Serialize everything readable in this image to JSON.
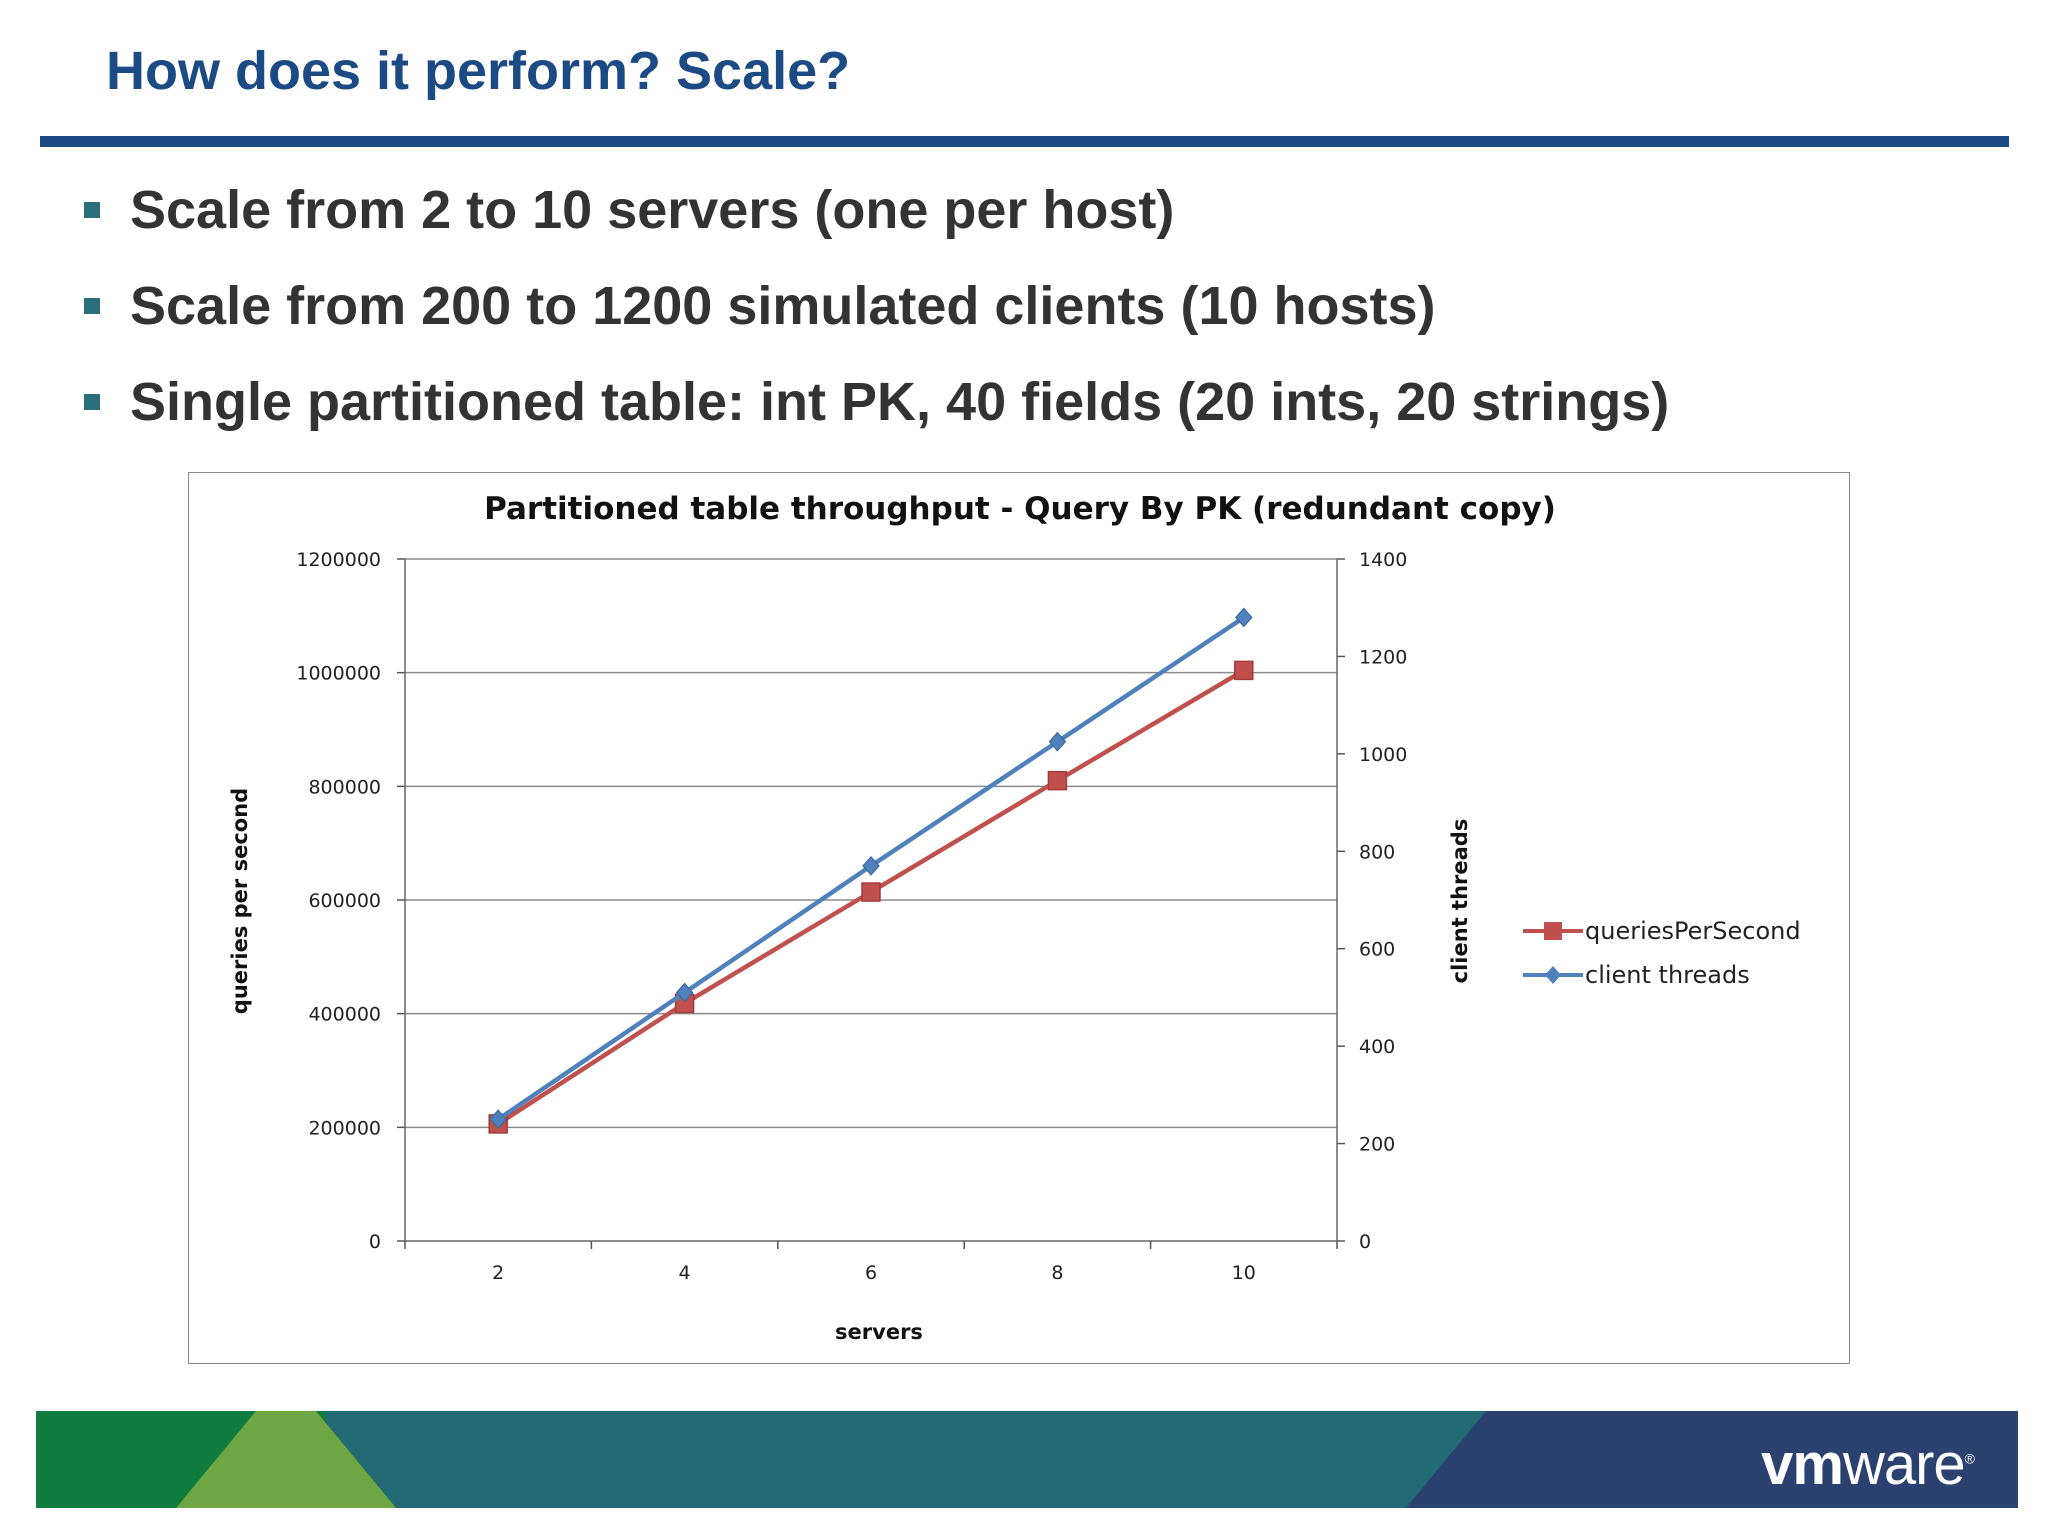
{
  "slide": {
    "title": "How does it perform? Scale?",
    "bullets": [
      "Scale from 2 to 10 servers (one per host)",
      "Scale from 200 to 1200 simulated clients (10 hosts)",
      "Single partitioned table: int PK, 40 fields (20 ints, 20 strings)"
    ],
    "colors": {
      "title": "#1b4a85",
      "rule": "#1b4a85",
      "bullet": "#2b6f7c",
      "text": "#333333"
    }
  },
  "chart_data": {
    "type": "line",
    "title": "Partitioned table throughput - Query By PK (redundant copy)",
    "xlabel": "servers",
    "ylabel": "queries per second",
    "y2label": "client threads",
    "categories": [
      "2",
      "4",
      "6",
      "8",
      "10"
    ],
    "x": [
      2,
      4,
      6,
      8,
      10
    ],
    "ylim": [
      0,
      1200000
    ],
    "y_ticks": [
      "0",
      "200000",
      "400000",
      "600000",
      "800000",
      "1000000",
      "1200000"
    ],
    "y2lim": [
      0,
      1400
    ],
    "y2_ticks": [
      "0",
      "200",
      "400",
      "600",
      "800",
      "1000",
      "1200",
      "1400"
    ],
    "grid": true,
    "legend_position": "right",
    "series": [
      {
        "name": "queriesPerSecond",
        "axis": "left",
        "marker": "square",
        "color": "#c0504d",
        "values": [
          206000,
          418000,
          614000,
          810000,
          1004000
        ]
      },
      {
        "name": "client threads",
        "axis": "right",
        "marker": "diamond",
        "color": "#4f81bd",
        "values": [
          250,
          510,
          770,
          1025,
          1280
        ]
      }
    ]
  },
  "footer": {
    "logo": {
      "bold": "vm",
      "light": "ware",
      "mark": "®"
    },
    "colors": [
      "#117c3f",
      "#6ea643",
      "#236b74",
      "#2b4170"
    ]
  }
}
